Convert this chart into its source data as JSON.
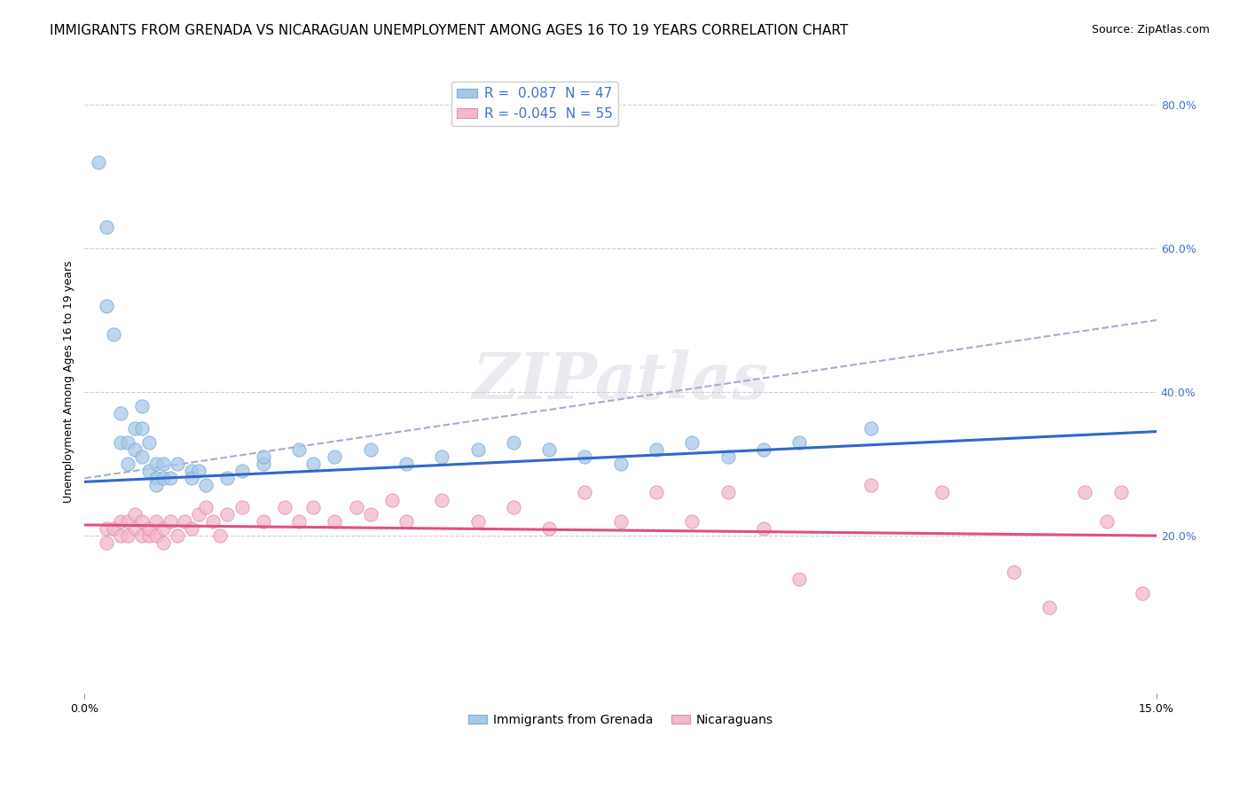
{
  "title": "IMMIGRANTS FROM GRENADA VS NICARAGUAN UNEMPLOYMENT AMONG AGES 16 TO 19 YEARS CORRELATION CHART",
  "source": "Source: ZipAtlas.com",
  "ylabel": "Unemployment Among Ages 16 to 19 years",
  "right_yticklabels": [
    "",
    "20.0%",
    "40.0%",
    "60.0%",
    "80.0%"
  ],
  "legend_blue_r": "R =  0.087",
  "legend_blue_n": "N = 47",
  "legend_pink_r": "R = -0.045",
  "legend_pink_n": "N = 55",
  "legend_label_blue": "Immigrants from Grenada",
  "legend_label_pink": "Nicaraguans",
  "blue_color": "#a8c8e8",
  "blue_marker_edge": "#7aafd4",
  "blue_line_color": "#3366cc",
  "pink_color": "#f4b8cc",
  "pink_marker_edge": "#e090b0",
  "pink_line_color": "#e05080",
  "dashed_line_color": "#aaaacc",
  "background_color": "#ffffff",
  "blue_scatter_x": [
    0.002,
    0.003,
    0.003,
    0.004,
    0.005,
    0.005,
    0.006,
    0.006,
    0.007,
    0.007,
    0.008,
    0.008,
    0.008,
    0.009,
    0.009,
    0.01,
    0.01,
    0.01,
    0.011,
    0.011,
    0.012,
    0.013,
    0.015,
    0.015,
    0.016,
    0.017,
    0.02,
    0.022,
    0.025,
    0.025,
    0.03,
    0.032,
    0.035,
    0.04,
    0.045,
    0.05,
    0.055,
    0.06,
    0.065,
    0.07,
    0.075,
    0.08,
    0.085,
    0.09,
    0.095,
    0.1,
    0.11
  ],
  "blue_scatter_y": [
    0.72,
    0.63,
    0.52,
    0.48,
    0.37,
    0.33,
    0.3,
    0.33,
    0.35,
    0.32,
    0.35,
    0.38,
    0.31,
    0.29,
    0.33,
    0.3,
    0.28,
    0.27,
    0.3,
    0.28,
    0.28,
    0.3,
    0.29,
    0.28,
    0.29,
    0.27,
    0.28,
    0.29,
    0.3,
    0.31,
    0.32,
    0.3,
    0.31,
    0.32,
    0.3,
    0.31,
    0.32,
    0.33,
    0.32,
    0.31,
    0.3,
    0.32,
    0.33,
    0.31,
    0.32,
    0.33,
    0.35
  ],
  "blue_line_x0": 0.0,
  "blue_line_y0": 0.275,
  "blue_line_x1": 0.15,
  "blue_line_y1": 0.345,
  "pink_scatter_x": [
    0.003,
    0.003,
    0.004,
    0.005,
    0.005,
    0.006,
    0.006,
    0.007,
    0.007,
    0.008,
    0.008,
    0.009,
    0.009,
    0.01,
    0.01,
    0.011,
    0.011,
    0.012,
    0.013,
    0.014,
    0.015,
    0.016,
    0.017,
    0.018,
    0.019,
    0.02,
    0.022,
    0.025,
    0.028,
    0.03,
    0.032,
    0.035,
    0.038,
    0.04,
    0.043,
    0.045,
    0.05,
    0.055,
    0.06,
    0.065,
    0.07,
    0.075,
    0.08,
    0.085,
    0.09,
    0.095,
    0.1,
    0.11,
    0.12,
    0.13,
    0.135,
    0.14,
    0.143,
    0.145,
    0.148
  ],
  "pink_scatter_y": [
    0.21,
    0.19,
    0.21,
    0.2,
    0.22,
    0.2,
    0.22,
    0.21,
    0.23,
    0.2,
    0.22,
    0.2,
    0.21,
    0.2,
    0.22,
    0.21,
    0.19,
    0.22,
    0.2,
    0.22,
    0.21,
    0.23,
    0.24,
    0.22,
    0.2,
    0.23,
    0.24,
    0.22,
    0.24,
    0.22,
    0.24,
    0.22,
    0.24,
    0.23,
    0.25,
    0.22,
    0.25,
    0.22,
    0.24,
    0.21,
    0.26,
    0.22,
    0.26,
    0.22,
    0.26,
    0.21,
    0.14,
    0.27,
    0.26,
    0.15,
    0.1,
    0.26,
    0.22,
    0.26,
    0.12
  ],
  "pink_line_x0": 0.0,
  "pink_line_y0": 0.215,
  "pink_line_x1": 0.15,
  "pink_line_y1": 0.2,
  "dashed_line_x0": 0.0,
  "dashed_line_y0": 0.28,
  "dashed_line_x1": 0.15,
  "dashed_line_y1": 0.5,
  "xlim": [
    0.0,
    0.15
  ],
  "ylim": [
    -0.02,
    0.85
  ],
  "title_fontsize": 11,
  "source_fontsize": 9,
  "axis_fontsize": 9,
  "tick_fontsize": 9
}
